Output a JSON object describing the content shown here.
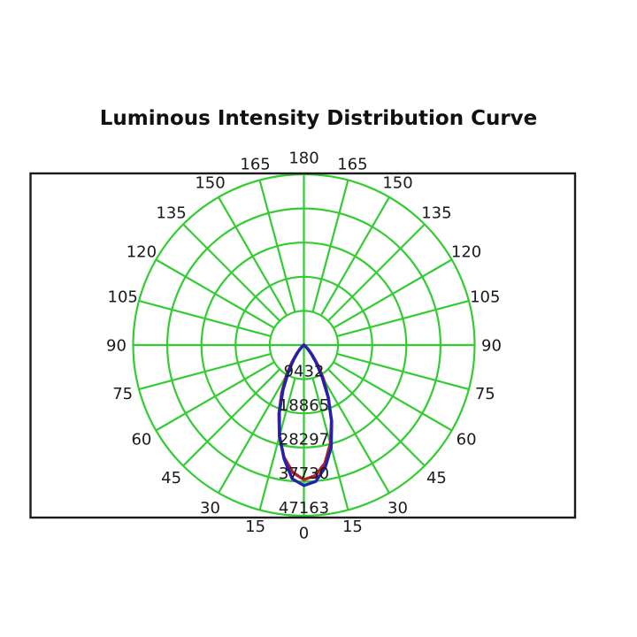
{
  "page": {
    "title": "Luminous Intensity Distribution Curve"
  },
  "chart_data": {
    "type": "line",
    "subtype": "polar-intensity-distribution",
    "title": "Luminous Intensity Distribution Curve",
    "angle_unit": "degrees",
    "angle_zero_direction": "down",
    "grid": {
      "color": "#33cc33",
      "ring_count": 5,
      "spoke_step_deg": 15,
      "frame_color": "#1a1a1a"
    },
    "radial_axis": {
      "max": 47163,
      "tick_values": [
        9432,
        18865,
        28297,
        37730,
        47163
      ]
    },
    "angle_ticks": [
      {
        "label": "0",
        "angle": 0
      },
      {
        "label": "15",
        "angle": 15
      },
      {
        "label": "15",
        "angle": -15
      },
      {
        "label": "30",
        "angle": 30
      },
      {
        "label": "30",
        "angle": -30
      },
      {
        "label": "45",
        "angle": 45
      },
      {
        "label": "45",
        "angle": -45
      },
      {
        "label": "60",
        "angle": 60
      },
      {
        "label": "60",
        "angle": -60
      },
      {
        "label": "75",
        "angle": 75
      },
      {
        "label": "75",
        "angle": -75
      },
      {
        "label": "90",
        "angle": 90
      },
      {
        "label": "90",
        "angle": -90
      },
      {
        "label": "105",
        "angle": 105
      },
      {
        "label": "105",
        "angle": -105
      },
      {
        "label": "120",
        "angle": 120
      },
      {
        "label": "120",
        "angle": -120
      },
      {
        "label": "135",
        "angle": 135
      },
      {
        "label": "135",
        "angle": -135
      },
      {
        "label": "150",
        "angle": 150
      },
      {
        "label": "150",
        "angle": -150
      },
      {
        "label": "165",
        "angle": 165
      },
      {
        "label": "165",
        "angle": -165
      },
      {
        "label": "180",
        "angle": 180
      }
    ],
    "series": [
      {
        "name": "red_curve",
        "color": "#b22222",
        "angles_deg": [
          -90,
          -85,
          -80,
          -75,
          -70,
          -65,
          -60,
          -55,
          -50,
          -45,
          -40,
          -35,
          -30,
          -25,
          -20,
          -15,
          -10,
          -5,
          0,
          5,
          10,
          15,
          20,
          25,
          30,
          35,
          40,
          45,
          50,
          55,
          60,
          65,
          70,
          75,
          80,
          85,
          90
        ],
        "values": [
          0,
          0,
          0,
          0,
          2,
          14,
          65,
          230,
          640,
          1520,
          3150,
          5800,
          9600,
          14500,
          20200,
          26200,
          31500,
          35300,
          37200,
          36200,
          33200,
          28200,
          22200,
          16100,
          10800,
          6600,
          3650,
          1780,
          760,
          275,
          80,
          18,
          3,
          0,
          0,
          0,
          0
        ]
      },
      {
        "name": "blue_curve",
        "color": "#2222b2",
        "angles_deg": [
          -90,
          -85,
          -80,
          -75,
          -70,
          -65,
          -60,
          -55,
          -50,
          -45,
          -40,
          -35,
          -30,
          -25,
          -20,
          -15,
          -10,
          -5,
          0,
          5,
          10,
          15,
          20,
          25,
          30,
          35,
          40,
          45,
          50,
          55,
          60,
          65,
          70,
          75,
          80,
          85,
          90
        ],
        "values": [
          0,
          0,
          0,
          0,
          1,
          6,
          33,
          135,
          430,
          1100,
          2500,
          4900,
          8600,
          13600,
          19800,
          26000,
          31800,
          37100,
          38800,
          37800,
          34200,
          29200,
          22400,
          15800,
          9800,
          5700,
          2950,
          1350,
          530,
          170,
          45,
          8,
          1,
          0,
          0,
          0,
          0
        ]
      }
    ]
  }
}
